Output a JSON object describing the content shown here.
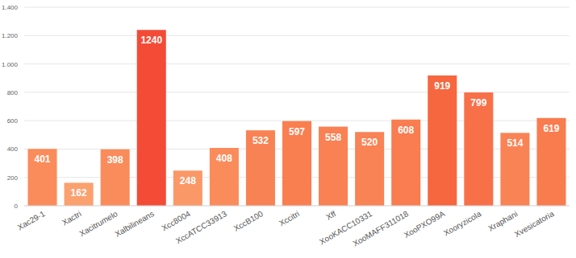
{
  "chart_data": {
    "type": "bar",
    "categories": [
      "Xac29-1",
      "Xactri",
      "Xacitrumelo",
      "Xalbilineans",
      "Xcc8004",
      "XccATCC33913",
      "XccB100",
      "Xccitri",
      "Xff",
      "XooKACC10331",
      "XooMAFF311018",
      "XooPXO99A",
      "Xooryzicola",
      "Xraphani",
      "Xvesicatoria"
    ],
    "values": [
      401,
      162,
      398,
      1240,
      248,
      408,
      532,
      597,
      558,
      520,
      608,
      919,
      799,
      514,
      619
    ],
    "colors": [
      "#fa8c5b",
      "#fba06f",
      "#fa8c5b",
      "#f44b37",
      "#fb9868",
      "#fa8b5a",
      "#f98254",
      "#f97e50",
      "#f98153",
      "#f98355",
      "#f97d50",
      "#f6663f",
      "#f87048",
      "#f98355",
      "#f97c4f"
    ],
    "ylim": [
      0,
      1400
    ],
    "yticks": [
      0,
      200,
      400,
      600,
      800,
      {
        "value": 1000,
        "label": "1.000"
      },
      {
        "value": 1200,
        "label": "1.200"
      },
      {
        "value": 1400,
        "label": "1.400"
      }
    ],
    "grid": true,
    "data_labels": true
  }
}
